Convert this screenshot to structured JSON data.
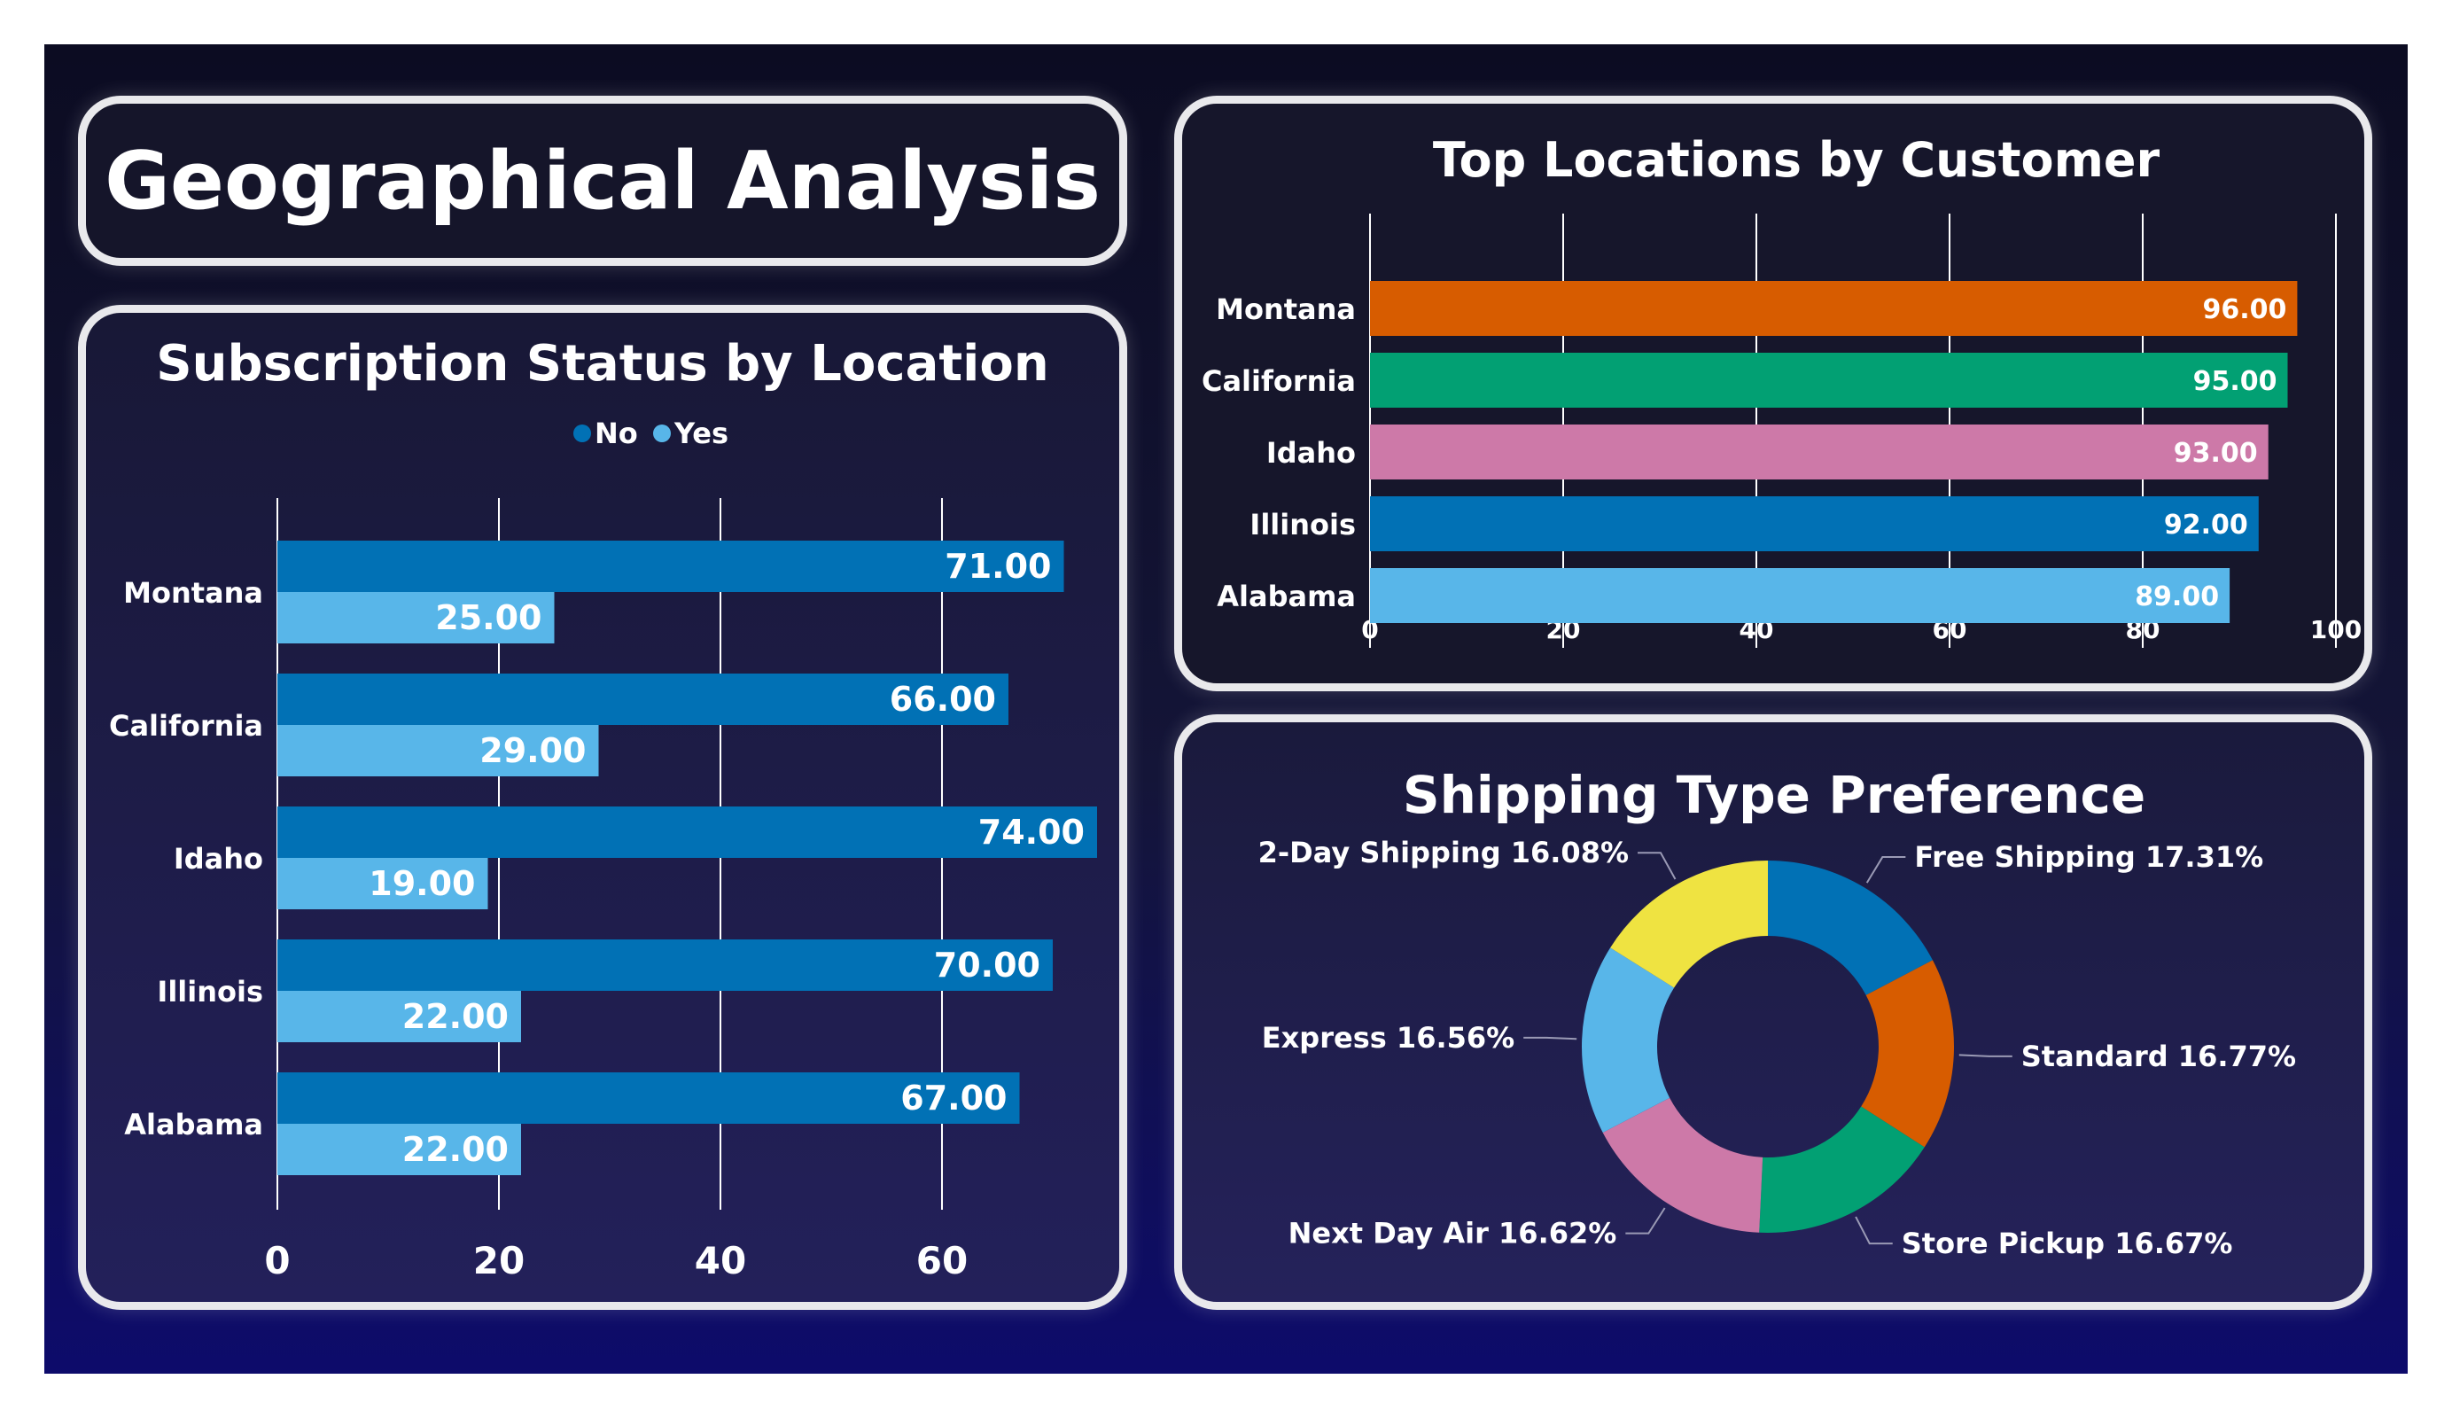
{
  "dashboard": {
    "title": "Geographical Analysis"
  },
  "colors": {
    "no": "#0171b5",
    "yes": "#58b6e9",
    "orange": "#d75c00",
    "green": "#02a073",
    "pink": "#cd79a8",
    "yellow": "#efe341",
    "grid": "#ffffff",
    "text": "#ffffff"
  },
  "chart_data": [
    {
      "id": "subscription",
      "type": "bar",
      "orientation": "horizontal",
      "title": "Subscription Status by Location",
      "categories": [
        "Montana",
        "California",
        "Idaho",
        "Illinois",
        "Alabama"
      ],
      "series": [
        {
          "name": "No",
          "values": [
            71,
            66,
            74,
            70,
            67
          ],
          "color": "#0171b5"
        },
        {
          "name": "Yes",
          "values": [
            25,
            29,
            19,
            22,
            22
          ],
          "color": "#58b6e9"
        }
      ],
      "value_labels": {
        "No": [
          "71.00",
          "66.00",
          "74.00",
          "70.00",
          "67.00"
        ],
        "Yes": [
          "25.00",
          "29.00",
          "19.00",
          "22.00",
          "22.00"
        ]
      },
      "xlim": [
        0,
        74
      ],
      "ticks": [
        "0",
        "20",
        "40",
        "60"
      ],
      "legend": "top-center",
      "grid": true
    },
    {
      "id": "top_locations",
      "type": "bar",
      "orientation": "horizontal",
      "title": "Top Locations by Customer",
      "categories": [
        "Montana",
        "California",
        "Idaho",
        "Illinois",
        "Alabama"
      ],
      "values": [
        96,
        95,
        93,
        92,
        89
      ],
      "value_labels": [
        "96.00",
        "95.00",
        "93.00",
        "92.00",
        "89.00"
      ],
      "colors": [
        "#d75c00",
        "#02a073",
        "#cd79a8",
        "#0171b5",
        "#58b6e9"
      ],
      "xlim": [
        0,
        100
      ],
      "ticks": [
        "0",
        "20",
        "40",
        "60",
        "80",
        "100"
      ],
      "grid": true
    },
    {
      "id": "shipping",
      "type": "pie",
      "donut": true,
      "title": "Shipping Type Preference",
      "slices": [
        {
          "label": "Free Shipping 17.31%",
          "value": 17.31,
          "color": "#0171b5"
        },
        {
          "label": "Standard 16.77%",
          "value": 16.77,
          "color": "#d75c00"
        },
        {
          "label": "Store Pickup 16.67%",
          "value": 16.67,
          "color": "#02a073"
        },
        {
          "label": "Next Day Air 16.62%",
          "value": 16.62,
          "color": "#cd79a8"
        },
        {
          "label": "Express 16.56%",
          "value": 16.56,
          "color": "#58b6e9"
        },
        {
          "label": "2-Day Shipping 16.08%",
          "value": 16.08,
          "color": "#efe341"
        }
      ]
    }
  ]
}
